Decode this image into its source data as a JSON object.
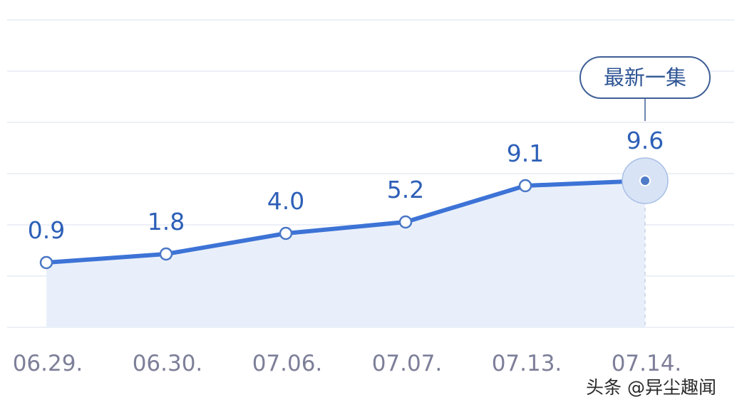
{
  "chart_data": {
    "type": "line",
    "categories": [
      "06.29.",
      "06.30.",
      "07.06.",
      "07.07.",
      "07.13.",
      "07.14."
    ],
    "values": [
      0.9,
      1.8,
      4.0,
      5.2,
      9.1,
      9.6
    ],
    "value_labels": [
      "0.9",
      "1.8",
      "4.0",
      "5.2",
      "9.1",
      "9.6"
    ],
    "area_fill": true,
    "grid": true,
    "line_color": "#3d73d6",
    "area_color": "#e9effa",
    "annotation": {
      "label": "最新一集",
      "target_index": 5
    }
  },
  "watermark": "头条 @异尘趣闻"
}
